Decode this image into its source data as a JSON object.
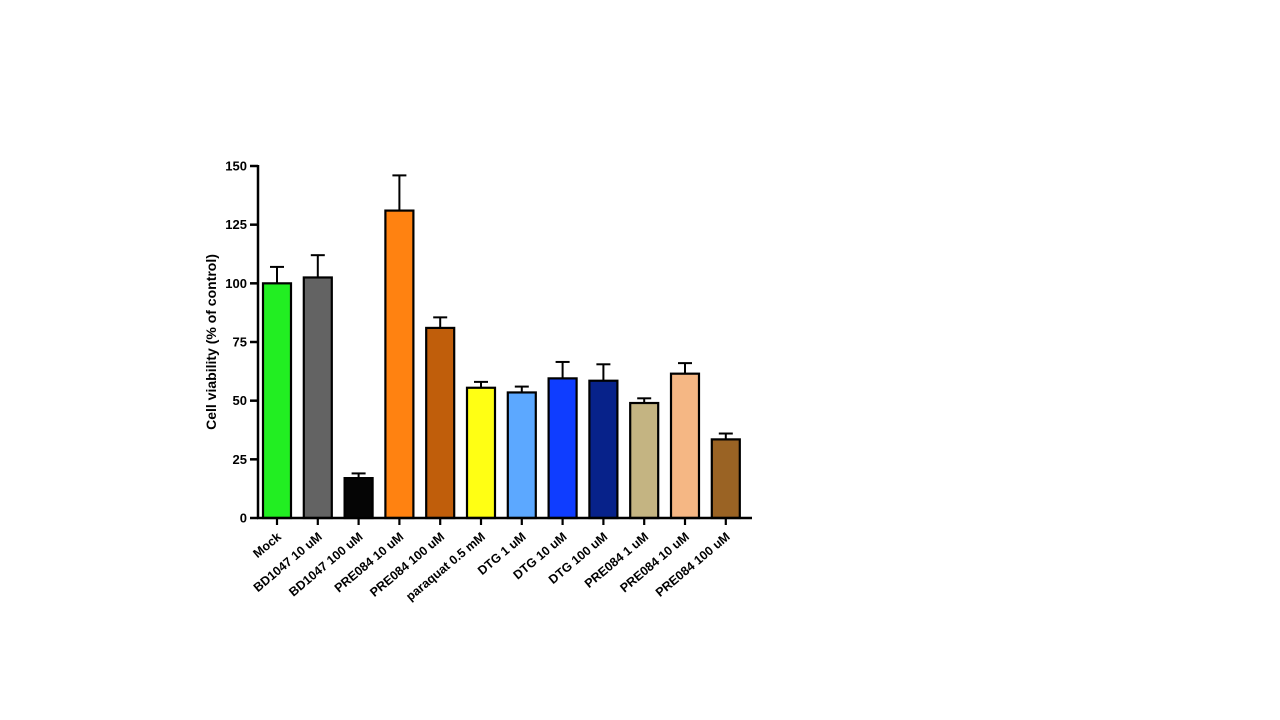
{
  "chart_data": {
    "type": "bar",
    "title": "",
    "xlabel": "",
    "ylabel": "Cell viability (% of control)",
    "ylim": [
      0,
      150
    ],
    "yticks": [
      0,
      25,
      50,
      75,
      100,
      125,
      150
    ],
    "grid": false,
    "legend": "none",
    "categories": [
      "Mock",
      "BD1047 10 uM",
      "BD1047 100 uM",
      "PRE084 10 uM",
      "PRE084 100 uM",
      "paraquat 0.5 mM",
      "DTG 1 uM",
      "DTG 10 uM",
      "DTG 100 uM",
      "PRE084 1 uM",
      "PRE084 10 uM",
      "PRE084 100 uM"
    ],
    "values": [
      100,
      102.5,
      17,
      131,
      81,
      55.5,
      53.5,
      59.5,
      58.5,
      49,
      61.5,
      33.5
    ],
    "errors": [
      7,
      9.5,
      2,
      15,
      4.5,
      2.5,
      2.5,
      7,
      7,
      2,
      4.5,
      2.5
    ],
    "colors": [
      "#22ee22",
      "#636363",
      "#050505",
      "#ff8211",
      "#c05e0b",
      "#ffff14",
      "#5ca8ff",
      "#0f3dff",
      "#07228a",
      "#c4b482",
      "#f5b784",
      "#9a6324"
    ]
  }
}
